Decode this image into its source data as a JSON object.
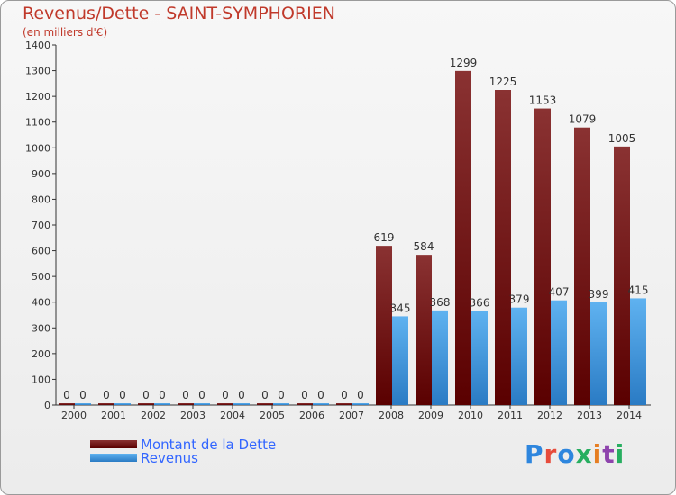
{
  "title": "Revenus/Dette - SAINT-SYMPHORIEN",
  "subtitle": "(en milliers d'€)",
  "logo": {
    "text": "Proxiti",
    "colors": [
      "#2e86de",
      "#e74c3c",
      "#2e86de",
      "#27ae60",
      "#e67e22",
      "#8e44ad",
      "#27ae60"
    ]
  },
  "legend": {
    "items": [
      {
        "label": "Montant de la Dette",
        "color": "#6b0d0d"
      },
      {
        "label": "Revenus",
        "color": "#3d95db"
      }
    ]
  },
  "chart_data": {
    "type": "bar",
    "title": "Revenus/Dette - SAINT-SYMPHORIEN",
    "ylabel": "(en milliers d'€)",
    "ylim": [
      0,
      1400
    ],
    "yticks": [
      0,
      100,
      200,
      300,
      400,
      500,
      600,
      700,
      800,
      900,
      1000,
      1100,
      1200,
      1300,
      1400
    ],
    "grid": false,
    "legend_position": "bottom-left",
    "categories": [
      "2000",
      "2001",
      "2002",
      "2003",
      "2004",
      "2005",
      "2006",
      "2007",
      "2008",
      "2009",
      "2010",
      "2011",
      "2012",
      "2013",
      "2014"
    ],
    "series": [
      {
        "name": "Montant de la Dette",
        "color": "#6b0d0d",
        "values": [
          0,
          0,
          0,
          0,
          0,
          0,
          0,
          0,
          619,
          584,
          1299,
          1225,
          1153,
          1079,
          1005
        ]
      },
      {
        "name": "Revenus",
        "color": "#3d95db",
        "values": [
          0,
          0,
          0,
          0,
          0,
          0,
          0,
          0,
          345,
          368,
          366,
          379,
          407,
          399,
          415
        ]
      }
    ]
  }
}
